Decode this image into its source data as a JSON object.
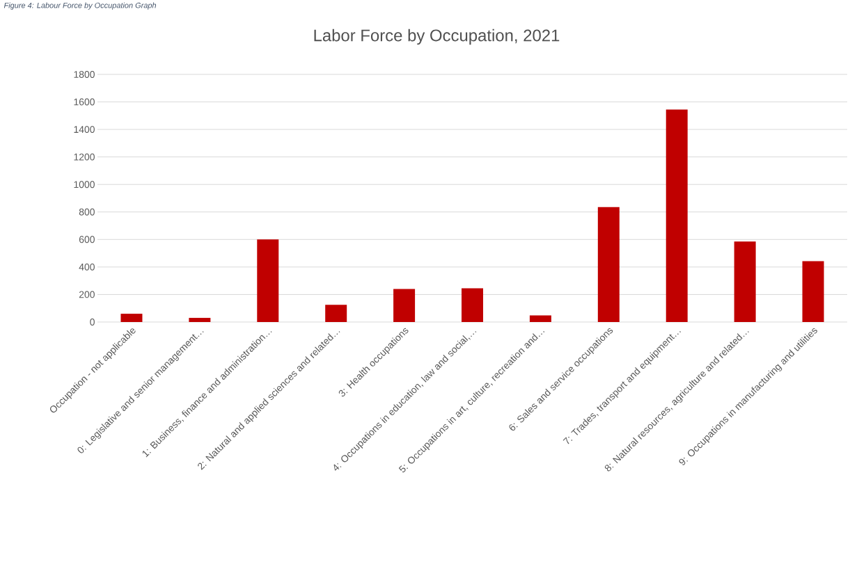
{
  "chart_data": {
    "type": "bar",
    "title": "Labor Force by Occupation, 2021",
    "annotations": [
      "Figure 4: Labour Force by Occupation Graph"
    ],
    "categories": [
      "Occupation - not applicable",
      "0: Legislative and senior management…",
      "1: Business, finance and administration…",
      "2: Natural and applied sciences and related…",
      "3: Health occupations",
      "4: Occupations in education, law and social,…",
      "5: Occupations in art, culture, recreation and…",
      "6: Sales and service occupations",
      "7: Trades, transport and equipment…",
      "8: Natural resources, agriculture and related…",
      "9: Occupations in manufacturing and utilities"
    ],
    "values": [
      60,
      30,
      600,
      125,
      240,
      245,
      48,
      835,
      1545,
      585,
      442
    ],
    "color": "#c00000",
    "ylim": [
      0,
      1800
    ],
    "yticks": [
      0,
      200,
      400,
      600,
      800,
      1000,
      1200,
      1400,
      1600,
      1800
    ],
    "grid": "y"
  }
}
